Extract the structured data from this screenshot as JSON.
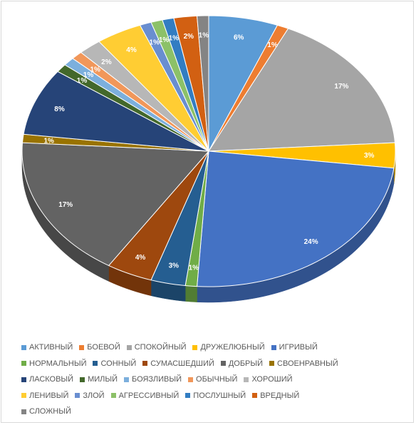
{
  "chart_data": {
    "type": "pie",
    "title": "",
    "series": [
      {
        "name": "АКТИВНЫЙ",
        "value": 6,
        "label": "6%",
        "color": "#5B9BD5"
      },
      {
        "name": "БОЕВОЙ",
        "value": 1,
        "label": "1%",
        "color": "#ED7D31"
      },
      {
        "name": "СПОКОЙНЫЙ",
        "value": 17,
        "label": "17%",
        "color": "#A5A5A5"
      },
      {
        "name": "ДРУЖЕЛЮБНЫЙ",
        "value": 3,
        "label": "3%",
        "color": "#FFC000"
      },
      {
        "name": "ИГРИВЫЙ",
        "value": 24,
        "label": "24%",
        "color": "#4472C4"
      },
      {
        "name": "НОРМАЛЬНЫЙ",
        "value": 1,
        "label": "1%",
        "color": "#70AD47"
      },
      {
        "name": "СОННЫЙ",
        "value": 3,
        "label": "3%",
        "color": "#255E91"
      },
      {
        "name": "СУМАСШЕДШИЙ",
        "value": 4,
        "label": "4%",
        "color": "#9E480E"
      },
      {
        "name": "ДОБРЫЙ",
        "value": 17,
        "label": "17%",
        "color": "#636363"
      },
      {
        "name": "СВОЕНРАВНЫЙ",
        "value": 1,
        "label": "1%",
        "color": "#997300"
      },
      {
        "name": "ЛАСКОВЫЙ",
        "value": 8,
        "label": "8%",
        "color": "#264478"
      },
      {
        "name": "МИЛЫЙ",
        "value": 1,
        "label": "1%",
        "color": "#43682B"
      },
      {
        "name": "БОЯЗЛИВЫЙ",
        "value": 1,
        "label": "1%",
        "color": "#7CAFDD"
      },
      {
        "name": "ОБЫЧНЫЙ",
        "value": 1,
        "label": "1%",
        "color": "#F1975A"
      },
      {
        "name": "ХОРОШИЙ",
        "value": 2,
        "label": "2%",
        "color": "#B7B7B7"
      },
      {
        "name": "ЛЕНИВЫЙ",
        "value": 4,
        "label": "4%",
        "color": "#FFCD33"
      },
      {
        "name": "ЗЛОЙ",
        "value": 1,
        "label": "1%",
        "color": "#698ED0"
      },
      {
        "name": "АГРЕССИВНЫЙ",
        "value": 1,
        "label": "1%",
        "color": "#8CC168"
      },
      {
        "name": "ПОСЛУШНЫЙ",
        "value": 1,
        "label": "1%",
        "color": "#327DC2"
      },
      {
        "name": "ВРЕДНЫЙ",
        "value": 2,
        "label": "2%",
        "color": "#D26012"
      },
      {
        "name": "СЛОЖНЫЙ",
        "value": 1,
        "label": "1%",
        "color": "#848484"
      }
    ],
    "legend_position": "bottom",
    "three_d": true
  }
}
